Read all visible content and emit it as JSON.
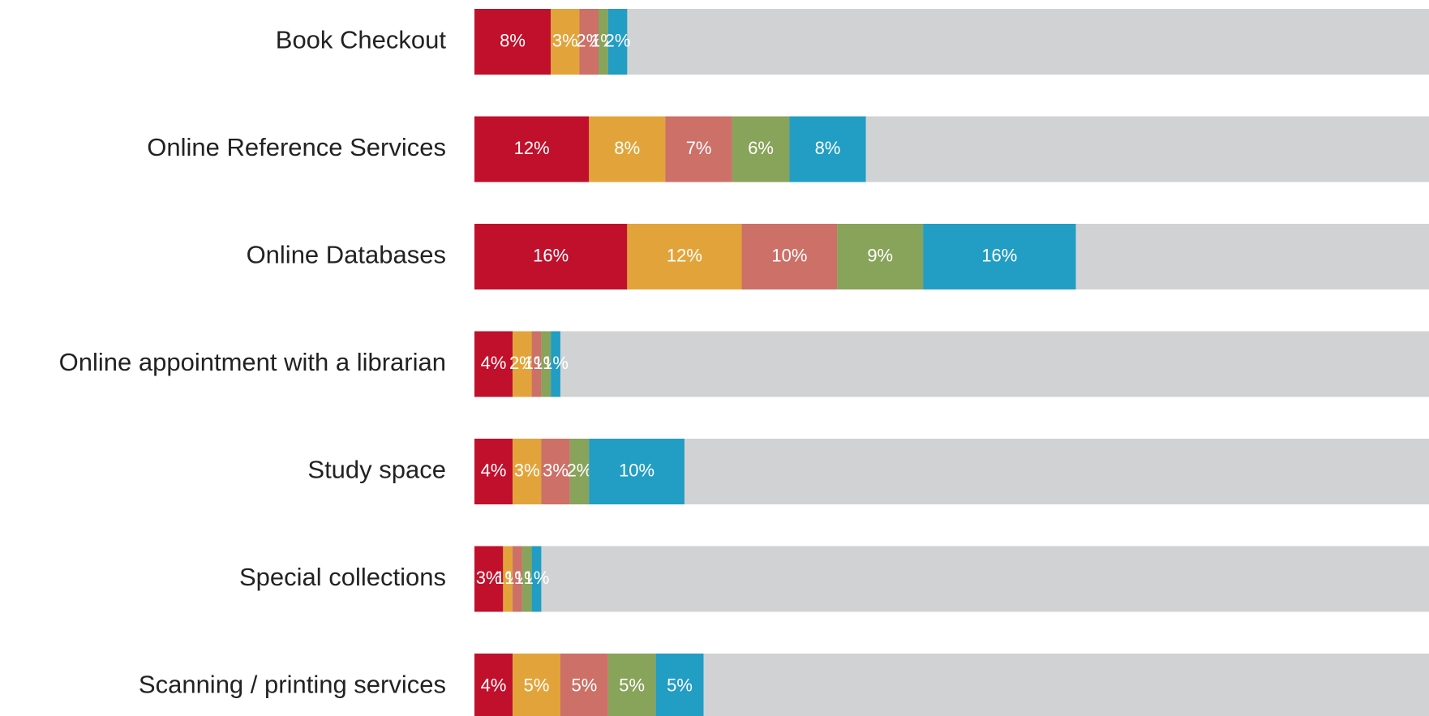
{
  "chart_data": {
    "type": "stacked-barh",
    "categories": [
      "Book Checkout",
      "Online Reference Services",
      "Online Databases",
      "Online appointment with a librarian",
      "Study space",
      "Special collections",
      "Scanning / printing services"
    ],
    "xlim": [
      0,
      100
    ],
    "track_color": "#d1d2d4",
    "series": [
      {
        "color": "#c0102c",
        "values": [
          8,
          12,
          16,
          4,
          4,
          3,
          4
        ],
        "value_labels": [
          "8%",
          "12%",
          "16%",
          "4%",
          "4%",
          "3%",
          "4%"
        ]
      },
      {
        "color": "#e2a43a",
        "values": [
          3,
          8,
          12,
          2,
          3,
          1,
          5
        ],
        "value_labels": [
          "3%",
          "8%",
          "12%",
          "2%",
          "3%",
          "1%",
          "5%"
        ]
      },
      {
        "color": "#cc7068",
        "values": [
          2,
          7,
          10,
          1,
          3,
          1,
          5
        ],
        "value_labels": [
          "2%",
          "7%",
          "10%",
          "1%",
          "3%",
          "1%",
          "5%"
        ]
      },
      {
        "color": "#88a35a",
        "values": [
          1,
          6,
          9,
          1,
          2,
          1,
          5
        ],
        "value_labels": [
          "1%",
          "6%",
          "9%",
          "1%",
          "2%",
          "1%",
          "5%"
        ]
      },
      {
        "color": "#229dc4",
        "values": [
          2,
          8,
          16,
          1,
          10,
          1,
          5
        ],
        "value_labels": [
          "2%",
          "8%",
          "16%",
          "1%",
          "10%",
          "1%",
          "5%"
        ]
      }
    ]
  }
}
